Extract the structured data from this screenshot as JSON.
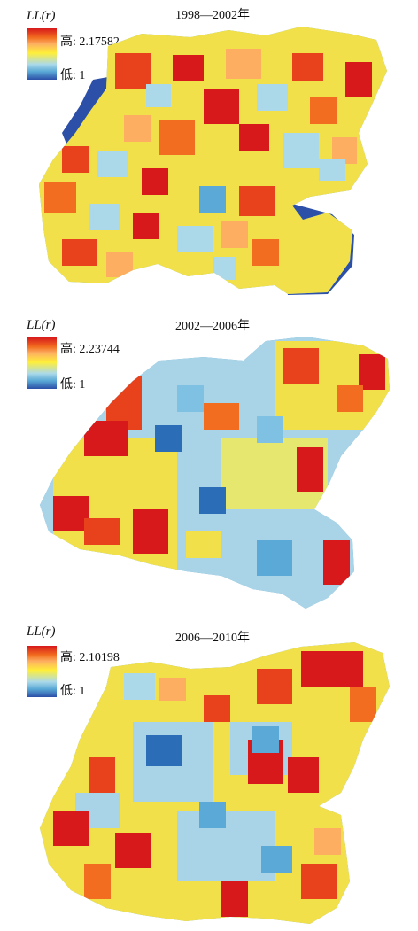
{
  "panels": [
    {
      "title": "1998—2002年",
      "variable": "LL(r)",
      "legend_high": "高: 2.17582",
      "legend_low": "低: 1"
    },
    {
      "title": "2002—2006年",
      "variable": "LL(r)",
      "legend_high": "高: 2.23744",
      "legend_low": "低: 1"
    },
    {
      "title": "2006—2010年",
      "variable": "LL(r)",
      "legend_high": "高: 2.10198",
      "legend_low": "低: 1"
    }
  ],
  "color_scale": {
    "high": "#d7191c",
    "mid_high": "#fdae61",
    "mid": "#ffef3a",
    "mid_low": "#7fc1e3",
    "low": "#2c4fa8"
  }
}
